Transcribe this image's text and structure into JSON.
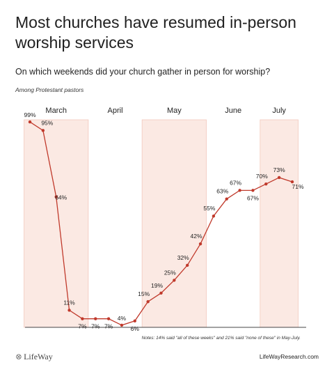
{
  "header": {
    "title": "Most churches have resumed in-person worship services",
    "subtitle": "On which weekends did your church gather in person for worship?",
    "population": "Among Protestant pastors"
  },
  "footer": {
    "notes": "Notes: 14% said \"all of these weeks\" and 21% said \"none of these\" in May-July.",
    "logo": "LifeWay",
    "site": "LifeWayResearch.com"
  },
  "colors": {
    "line": "#c0392b",
    "band": "#fbe9e3",
    "band_border": "#f2c9bd",
    "axis": "#444444"
  },
  "chart_data": {
    "type": "line",
    "title": "Most churches have resumed in-person worship services",
    "x_groups": [
      {
        "label": "March",
        "start": 0,
        "end": 5,
        "shaded": true
      },
      {
        "label": "April",
        "start": 5,
        "end": 9,
        "shaded": false
      },
      {
        "label": "May",
        "start": 9,
        "end": 14,
        "shaded": true
      },
      {
        "label": "June",
        "start": 14,
        "end": 18,
        "shaded": false
      },
      {
        "label": "July",
        "start": 18,
        "end": 21,
        "shaded": true
      }
    ],
    "series": [
      {
        "values": [
          99,
          95,
          64,
          11,
          7,
          7,
          7,
          4,
          6,
          15,
          19,
          25,
          32,
          42,
          55,
          63,
          67,
          67,
          70,
          73,
          71
        ],
        "labels": [
          "99%",
          "95%",
          "64%",
          "11%",
          "7%",
          "7%",
          "7%",
          "4%",
          "6%",
          "15%",
          "19%",
          "25%",
          "32%",
          "42%",
          "55%",
          "63%",
          "67%",
          "67%",
          "70%",
          "73%",
          "71%"
        ]
      }
    ],
    "ylim": [
      3,
      100
    ],
    "unit": "%",
    "grid": false
  }
}
